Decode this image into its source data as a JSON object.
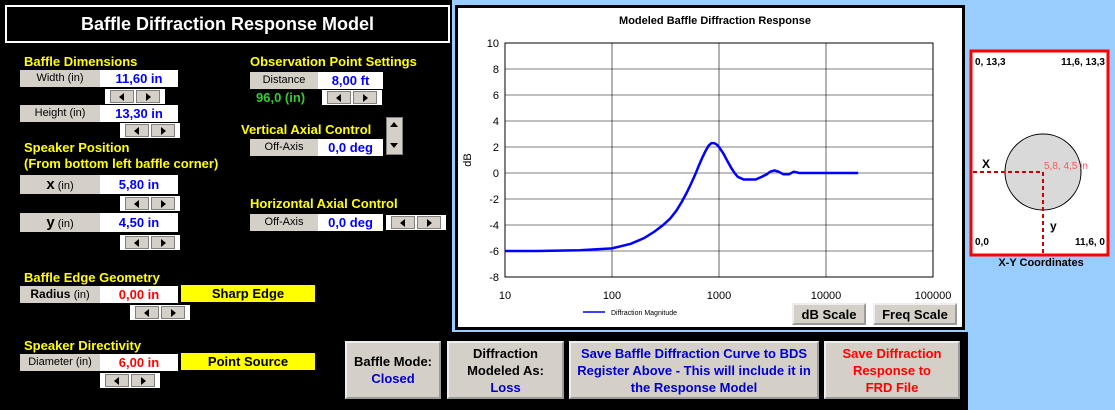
{
  "header": {
    "title": "Baffle Diffraction Response Model"
  },
  "baffle_dimensions": {
    "title": "Baffle Dimensions",
    "width": {
      "label": "Width (in)",
      "value": "11,60 in"
    },
    "height": {
      "label": "Height (in)",
      "value": "13,30 in"
    }
  },
  "speaker_position": {
    "title": "Speaker Position",
    "subtitle": "(From bottom left baffle corner)",
    "x": {
      "label": "x",
      "unit": "(in)",
      "value": "5,80 in"
    },
    "y": {
      "label": "y",
      "unit": "(in)",
      "value": "4,50 in"
    }
  },
  "observation": {
    "title": "Observation Point Settings",
    "distance": {
      "label": "Distance",
      "value": "8,00 ft"
    },
    "distance_in": "96,0 (in)"
  },
  "vertical_axial": {
    "title": "Vertical Axial Control",
    "label": "Off-Axis",
    "value": "0,0 deg"
  },
  "horizontal_axial": {
    "title": "Horizontal Axial Control",
    "label": "Off-Axis",
    "value": "0,0 deg"
  },
  "edge_geometry": {
    "title": "Baffle Edge Geometry",
    "label": "Radius",
    "unit": "(in)",
    "value": "0,00 in",
    "mode": "Sharp Edge"
  },
  "directivity": {
    "title": "Speaker Directivity",
    "label": "Diameter (in)",
    "value": "6,00 in",
    "mode": "Point Source"
  },
  "buttons": [
    {
      "label": "Baffle Mode:",
      "value": "Closed"
    },
    {
      "label": "Diffraction Modeled As:",
      "value": "Loss"
    },
    {
      "label": "Save Baffle Diffraction Curve to BDS Register Above - This will include it in the Response Model"
    },
    {
      "label": "Save Diffraction Response to FRD File"
    }
  ],
  "xy_diagram": {
    "top_left": "0, 13,3",
    "top_right": "11,6, 13,3",
    "bottom_left": "0,0",
    "bottom_right": "11,6, 0",
    "x_label": "X",
    "y_label": "y",
    "point": "5,8, 4,5 in",
    "caption": "X-Y Coordinates"
  },
  "chart_data": {
    "type": "line",
    "title": "Modeled Baffle Diffraction Response",
    "y_label": "dB",
    "x_scale": "log",
    "x": [
      10,
      20,
      50,
      100,
      150,
      200,
      250,
      300,
      350,
      400,
      450,
      500,
      550,
      600,
      650,
      700,
      750,
      800,
      850,
      900,
      950,
      1000,
      1100,
      1200,
      1300,
      1400,
      1500,
      1600,
      1700,
      1800,
      2000,
      2200,
      2500,
      2800,
      3000,
      3300,
      3600,
      4000,
      4500,
      5000,
      5600,
      6300,
      7000,
      8000,
      10000,
      12500,
      15000,
      20000
    ],
    "series": [
      {
        "name": "Diffraction Magnitude",
        "color": "#0000ff",
        "values": [
          -6,
          -6,
          -5.95,
          -5.8,
          -5.45,
          -5,
          -4.5,
          -4,
          -3.5,
          -2.9,
          -2.2,
          -1.5,
          -0.8,
          -0.1,
          0.6,
          1.2,
          1.7,
          2.1,
          2.3,
          2.3,
          2.2,
          2,
          1.5,
          0.9,
          0.4,
          0,
          -0.3,
          -0.4,
          -0.5,
          -0.5,
          -0.5,
          -0.5,
          -0.3,
          -0.1,
          0.1,
          0.2,
          0.1,
          -0.1,
          -0.1,
          0.1,
          0,
          0,
          0,
          0,
          0,
          0,
          0,
          0
        ]
      }
    ],
    "xlim": [
      10,
      100000
    ],
    "ylim": [
      -8,
      10
    ],
    "xticks": [
      10,
      100,
      1000,
      10000,
      100000
    ],
    "yticks": [
      -8,
      -6,
      -4,
      -2,
      0,
      2,
      4,
      6,
      8,
      10
    ],
    "grid": true,
    "legend": "bottom-left",
    "buttons": [
      "dB Scale",
      "Freq Scale"
    ]
  }
}
